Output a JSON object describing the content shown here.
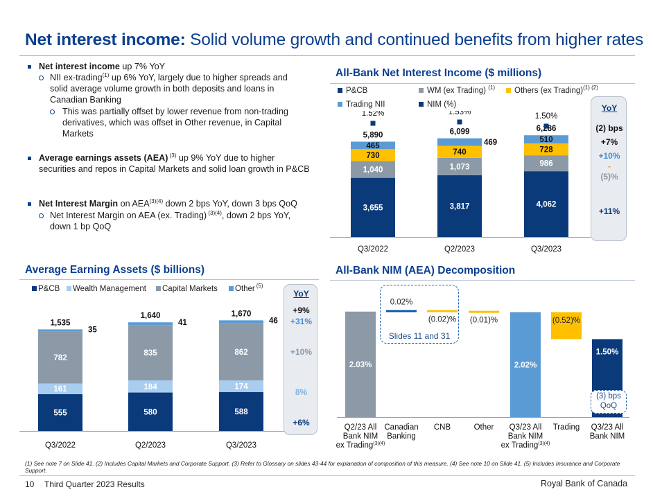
{
  "header": {
    "title_bold": "Net interest income:",
    "title_rest": " Solid volume growth and continued benefits from higher rates"
  },
  "bullets": {
    "b1_bold": "Net interest income",
    "b1_rest": " up 7% YoY",
    "b1a_pre": "NII ex-trading",
    "b1a_sup": "(1)",
    "b1a_rest": " up 6% YoY, largely due to higher spreads and solid average volume growth in both deposits and loans in Canadian Banking",
    "b1b": "This was partially offset by lower revenue from non-trading derivatives, which was offset in Other revenue, in Capital Markets",
    "b2_bold": "Average earnings assets (AEA)",
    "b2_sup": " (3)",
    "b2_rest": " up 9% YoY due to higher securities and repos in Capital Markets and solid loan growth in P&CB",
    "b3_bold": "Net Interest Margin",
    "b3_mid": " on AEA",
    "b3_sup": "(3)(4)",
    "b3_rest": " down 2 bps YoY, down 3 bps QoQ",
    "b3a_pre": "Net Interest Margin on AEA (ex. Trading)",
    "b3a_sup": " (3)(4)",
    "b3a_rest": ", down 2 bps YoY, down 1 bp QoQ"
  },
  "nii_section": {
    "title": "All-Bank Net Interest Income ($ millions)",
    "legend": [
      {
        "label": "P&CB",
        "sup": "",
        "color": "#0a3a7a"
      },
      {
        "label": "WM (ex Trading)",
        "sup": "(1)",
        "color": "#8c9aa8"
      },
      {
        "label": "Others (ex Trading)",
        "sup": "(1) (2)",
        "color": "#ffc000"
      },
      {
        "label": "Trading NII",
        "sup": "",
        "color": "#5b9bd5"
      },
      {
        "label": "NIM (%)",
        "sup": "",
        "color": "#0a3a7a"
      }
    ],
    "yoy": {
      "title": "YoY",
      "items": [
        "(2) bps",
        "+7%",
        "+10%",
        "-",
        "(5)%",
        "+11%"
      ]
    }
  },
  "aea_section": {
    "title": "Average Earning Assets ($ billions)",
    "legend": [
      {
        "label": "P&CB",
        "sup": "",
        "color": "#0a3a7a"
      },
      {
        "label": "Wealth Management",
        "sup": "",
        "color": "#a9cdef"
      },
      {
        "label": "Capital Markets",
        "sup": "",
        "color": "#8c9aa8"
      },
      {
        "label": "Other",
        "sup": "(5)",
        "color": "#5b9bd5"
      }
    ],
    "yoy": {
      "title": "YoY",
      "items": [
        "+9%",
        "+31%",
        "+10%",
        "8%",
        "+6%"
      ]
    }
  },
  "nim_section": {
    "title": "All-Bank NIM (AEA) Decomposition",
    "callout": "Slides 11 and 31",
    "qoq_line1": "(3) bps",
    "qoq_line2": "QoQ"
  },
  "chart_data": [
    {
      "type": "bar",
      "stacked": true,
      "title": "All-Bank Net Interest Income ($ millions)",
      "categories": [
        "Q3/2022",
        "Q2/2023",
        "Q3/2023"
      ],
      "series": [
        {
          "name": "P&CB",
          "color": "#0a3a7a",
          "values": [
            3655,
            3817,
            4062
          ],
          "labels": [
            "3,655",
            "3,817",
            "4,062"
          ]
        },
        {
          "name": "WM (ex Trading)",
          "color": "#8c9aa8",
          "values": [
            1040,
            1073,
            986
          ],
          "labels": [
            "1,040",
            "1,073",
            "986"
          ]
        },
        {
          "name": "Others (ex Trading)",
          "color": "#ffc000",
          "values": [
            730,
            740,
            728
          ],
          "labels": [
            "730",
            "740",
            "728"
          ]
        },
        {
          "name": "Trading NII",
          "color": "#5b9bd5",
          "values": [
            465,
            469,
            510
          ],
          "labels": [
            "465",
            "469",
            "510"
          ]
        }
      ],
      "totals": [
        "5,890",
        "6,099",
        "6,286"
      ],
      "nim": {
        "name": "NIM (%)",
        "values": [
          1.52,
          1.53,
          1.5
        ],
        "labels": [
          "1.52%",
          "1.53%",
          "1.50%"
        ]
      },
      "legend": "top",
      "grid": false
    },
    {
      "type": "bar",
      "stacked": true,
      "title": "Average Earning Assets ($ billions)",
      "categories": [
        "Q3/2022",
        "Q2/2023",
        "Q3/2023"
      ],
      "series": [
        {
          "name": "P&CB",
          "color": "#0a3a7a",
          "values": [
            555,
            580,
            588
          ],
          "labels": [
            "555",
            "580",
            "588"
          ]
        },
        {
          "name": "Wealth Management",
          "color": "#a9cdef",
          "values": [
            161,
            184,
            174
          ],
          "labels": [
            "161",
            "184",
            "174"
          ]
        },
        {
          "name": "Capital Markets",
          "color": "#8c9aa8",
          "values": [
            782,
            835,
            862
          ],
          "labels": [
            "782",
            "835",
            "862"
          ]
        },
        {
          "name": "Other",
          "color": "#5b9bd5",
          "values": [
            35,
            41,
            46
          ],
          "labels": [
            "35",
            "41",
            "46"
          ]
        }
      ],
      "totals": [
        "1,535",
        "1,640",
        "1,670"
      ],
      "legend": "top",
      "grid": false
    },
    {
      "type": "bar",
      "waterfall": true,
      "title": "All-Bank NIM (AEA) Decomposition",
      "unit": "%",
      "steps": [
        {
          "category": [
            "Q2/23 All",
            "Bank NIM",
            "ex Trading"
          ],
          "cat_sup": "(3)(4)",
          "kind": "total",
          "value": 2.03,
          "label": "2.03%",
          "color": "#8c9aa8"
        },
        {
          "category": [
            "Canadian",
            "Banking"
          ],
          "cat_sup": "",
          "kind": "delta",
          "value": 0.02,
          "label": "0.02%",
          "color": "#0a5aa8"
        },
        {
          "category": [
            "CNB"
          ],
          "cat_sup": "",
          "kind": "delta",
          "value": -0.02,
          "label": "(0.02)%",
          "color": "#ffc000"
        },
        {
          "category": [
            "Other"
          ],
          "cat_sup": "",
          "kind": "delta",
          "value": -0.01,
          "label": "(0.01)%",
          "color": "#ffc000"
        },
        {
          "category": [
            "Q3/23 All",
            "Bank NIM",
            "ex Trading"
          ],
          "cat_sup": "(3)(4)",
          "kind": "total",
          "value": 2.02,
          "label": "2.02%",
          "color": "#5b9bd5"
        },
        {
          "category": [
            "Trading"
          ],
          "cat_sup": "",
          "kind": "delta",
          "value": -0.52,
          "label": "(0.52)%",
          "color": "#ffc000"
        },
        {
          "category": [
            "Q3/23 All",
            "Bank NIM"
          ],
          "cat_sup": "",
          "kind": "total",
          "value": 1.5,
          "label": "1.50%",
          "color": "#0a3a7a"
        }
      ],
      "grid": false
    }
  ],
  "footer": {
    "notes": "(1) See note 7 on Slide 41. (2) Includes Capital Markets and Corporate Support. (3) Refer to Glossary on slides 43-44 for explanation of composition of this measure. (4) See note 10 on Slide 41. (5) Includes Insurance and Corporate Support.",
    "page_number": "10",
    "deck_title": "Third Quarter 2023 Results",
    "company": "Royal Bank of Canada"
  }
}
